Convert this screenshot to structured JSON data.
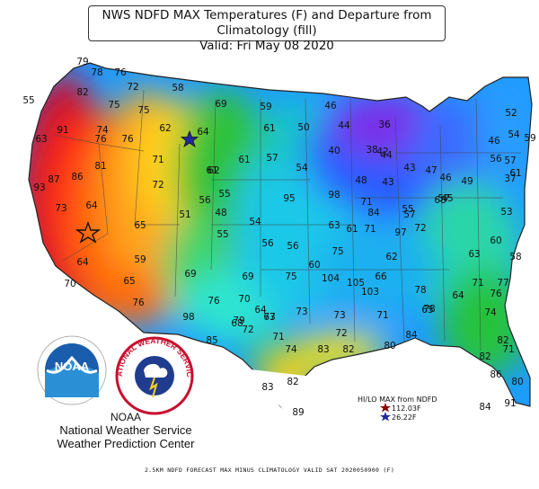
{
  "title": {
    "line1": "NWS NDFD MAX Temperatures (F) and Departure from Climatology (fill)",
    "line2": "Valid: Fri May 08 2020"
  },
  "attribution": {
    "line1": "NOAA",
    "line2": "National Weather Service",
    "line3": "Weather Prediction Center",
    "noaa_logo_text": "NOAA",
    "nws_logo_text": "NATIONAL WEATHER SERVICE"
  },
  "legend": {
    "title": "HI/LO MAX from NDFD",
    "high": "112.03F",
    "low": "26.22F",
    "high_color": "#8b0000",
    "low_color": "#1f2a9e",
    "high_icon": "red-star-icon",
    "low_icon": "blue-star-icon"
  },
  "footer": "2.5KM NDFD FORECAST MAX MINUS CLIMATOLOGY VALID SAT 2020050900 (F)",
  "station_values": [
    "79",
    "76",
    "78",
    "72",
    "82",
    "75",
    "75",
    "58",
    "69",
    "59",
    "46",
    "52",
    "55",
    "76",
    "62",
    "74",
    "76",
    "64",
    "61",
    "50",
    "44",
    "36",
    "46",
    "54",
    "59",
    "63",
    "91",
    "40",
    "38",
    "42",
    "43",
    "57",
    "61",
    "71",
    "81",
    "87",
    "86",
    "54",
    "61",
    "56",
    "57",
    "37",
    "48",
    "43",
    "46",
    "49",
    "45",
    "47",
    "44",
    "61",
    "93",
    "72",
    "62",
    "55",
    "95",
    "98",
    "84",
    "55",
    "57",
    "57",
    "53",
    "51",
    "48",
    "54",
    "68",
    "73",
    "64",
    "63",
    "61",
    "71",
    "97",
    "72",
    "65",
    "60",
    "56",
    "56",
    "56",
    "55",
    "71",
    "75",
    "62",
    "63",
    "58",
    "64",
    "59",
    "60",
    "69",
    "105",
    "78",
    "66",
    "64",
    "70",
    "65",
    "69",
    "75",
    "104",
    "103",
    "77",
    "64",
    "70",
    "67",
    "76",
    "73",
    "68",
    "72",
    "73",
    "71",
    "65",
    "74",
    "76",
    "98",
    "79",
    "73",
    "71",
    "72",
    "71",
    "76",
    "78",
    "74",
    "82",
    "80",
    "84",
    "85",
    "82",
    "71",
    "83",
    "82",
    "86",
    "83",
    "82",
    "80",
    "91",
    "89",
    "84",
    "83",
    "96",
    "90"
  ]
}
